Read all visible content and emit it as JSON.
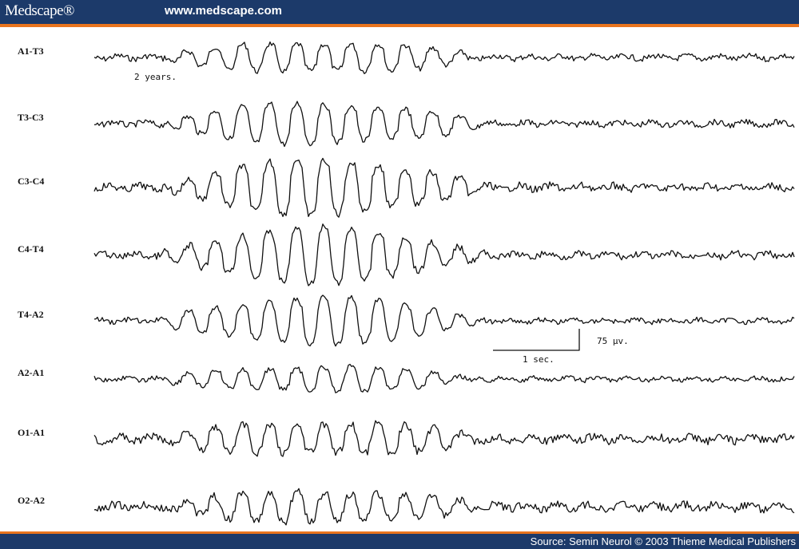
{
  "header": {
    "logo": "Medscape®",
    "url": "www.medscape.com",
    "bar_color": "#1c3a6a",
    "accent_color": "#e8741e"
  },
  "figure": {
    "age_note": "2 years.",
    "channels": [
      {
        "label": "A1-T3",
        "burst": 0.55,
        "base_noise": 0.35
      },
      {
        "label": "T3-C3",
        "burst": 0.75,
        "base_noise": 0.35
      },
      {
        "label": "C3-C4",
        "burst": 1.0,
        "base_noise": 0.45
      },
      {
        "label": "C4-T4",
        "burst": 1.0,
        "base_noise": 0.4
      },
      {
        "label": "T4-A2",
        "burst": 0.85,
        "base_noise": 0.3
      },
      {
        "label": "A2-A1",
        "burst": 0.45,
        "base_noise": 0.3
      },
      {
        "label": "O1-A1",
        "burst": 0.6,
        "base_noise": 0.5
      },
      {
        "label": "O2-A2",
        "burst": 0.55,
        "base_noise": 0.5
      }
    ],
    "calibration": {
      "time_label": "1 sec.",
      "amplitude_label": "75 µv."
    }
  },
  "footer": {
    "source": "Source: Semin Neurol © 2003 Thieme Medical Publishers"
  }
}
